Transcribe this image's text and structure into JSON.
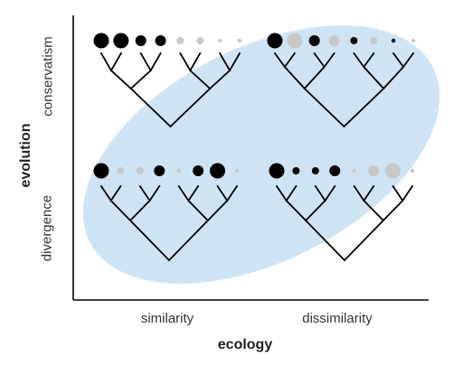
{
  "labels": {
    "y_axis": "evolution",
    "y_top": "conservatism",
    "y_bottom": "divergence",
    "x_axis": "ecology",
    "x_left": "similarity",
    "x_right": "dissimilarity"
  },
  "colors": {
    "ellipse": "#cfe4f3",
    "tree": "#000000",
    "node_black": "#000000",
    "node_grey": "#c8c8c8",
    "axis": "#000000"
  },
  "panels": [
    {
      "name": "top-left",
      "nodes": [
        {
          "tone": "black",
          "level": 3
        },
        {
          "tone": "black",
          "level": 3
        },
        {
          "tone": "black",
          "level": 2
        },
        {
          "tone": "black",
          "level": 2
        },
        {
          "tone": "grey",
          "level": 1
        },
        {
          "tone": "grey",
          "level": 1
        },
        {
          "tone": "grey",
          "level": 0
        },
        {
          "tone": "grey",
          "level": 0
        }
      ]
    },
    {
      "name": "top-right",
      "nodes": [
        {
          "tone": "black",
          "level": 3
        },
        {
          "tone": "grey",
          "level": 3
        },
        {
          "tone": "black",
          "level": 2
        },
        {
          "tone": "grey",
          "level": 2
        },
        {
          "tone": "black",
          "level": 1
        },
        {
          "tone": "grey",
          "level": 1
        },
        {
          "tone": "black",
          "level": 0
        },
        {
          "tone": "grey",
          "level": 0
        }
      ]
    },
    {
      "name": "bottom-left",
      "nodes": [
        {
          "tone": "black",
          "level": 3
        },
        {
          "tone": "grey",
          "level": 1
        },
        {
          "tone": "grey",
          "level": 1
        },
        {
          "tone": "black",
          "level": 2
        },
        {
          "tone": "grey",
          "level": 0
        },
        {
          "tone": "black",
          "level": 2
        },
        {
          "tone": "black",
          "level": 3
        },
        {
          "tone": "grey",
          "level": 0
        }
      ]
    },
    {
      "name": "bottom-right",
      "nodes": [
        {
          "tone": "black",
          "level": 3
        },
        {
          "tone": "black",
          "level": 1
        },
        {
          "tone": "black",
          "level": 1
        },
        {
          "tone": "black",
          "level": 2
        },
        {
          "tone": "grey",
          "level": 0
        },
        {
          "tone": "grey",
          "level": 2
        },
        {
          "tone": "grey",
          "level": 3
        },
        {
          "tone": "grey",
          "level": 0
        }
      ]
    }
  ]
}
